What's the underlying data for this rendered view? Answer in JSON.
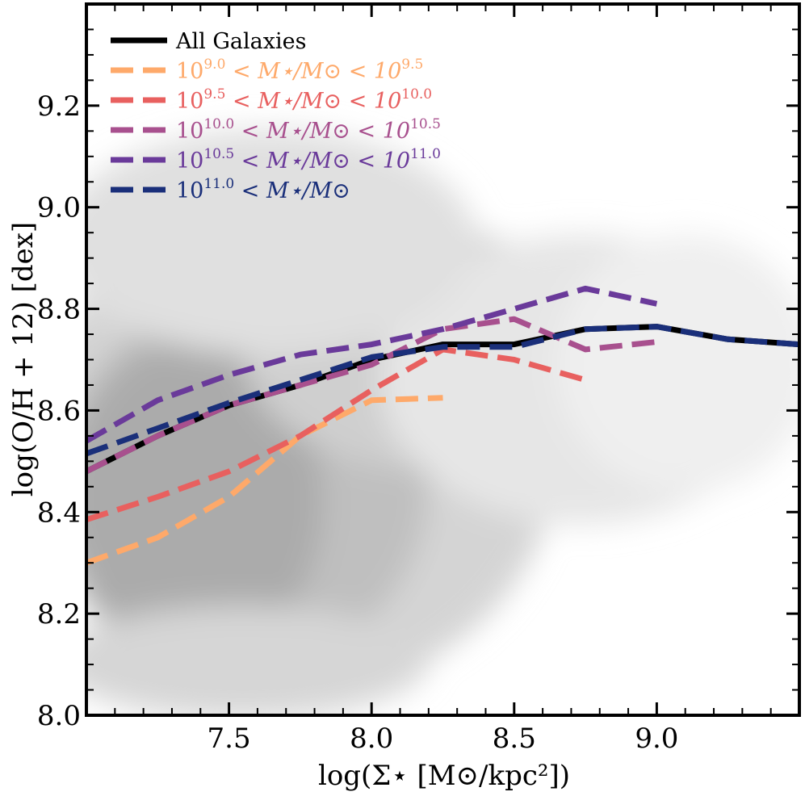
{
  "chart_data": {
    "type": "line",
    "title": "",
    "xlabel": "log(Σ⋆ [M⊙/kpc²])",
    "ylabel": "log(O/H + 12) [dex]",
    "xlim": [
      7.0,
      9.5
    ],
    "ylim": [
      8.0,
      9.4
    ],
    "xticks": [
      7.5,
      8.0,
      8.5,
      9.0
    ],
    "xtick_labels": [
      "7.5",
      "8.0",
      "8.5",
      "9.0"
    ],
    "yticks": [
      8.0,
      8.2,
      8.4,
      8.6,
      8.8,
      9.0,
      9.2
    ],
    "ytick_labels": [
      "8.0",
      "8.2",
      "8.4",
      "8.6",
      "8.8",
      "9.0",
      "9.2"
    ],
    "legend_position": "top-left",
    "background": "2D histogram of all galaxy spaxels (grey density)",
    "series": [
      {
        "name": "All Galaxies",
        "style": "solid",
        "color": "#000000",
        "x": [
          7.0,
          7.25,
          7.5,
          7.75,
          8.0,
          8.25,
          8.5,
          8.75,
          9.0,
          9.25,
          9.5
        ],
        "y": [
          8.48,
          8.55,
          8.61,
          8.65,
          8.7,
          8.73,
          8.73,
          8.76,
          8.765,
          8.74,
          8.73
        ]
      },
      {
        "name": "10^9.0 < M⋆/M⊙ < 10^9.5",
        "label_parts": [
          "10",
          "9.0",
          " < M⋆/M⊙ < 10",
          "9.5"
        ],
        "style": "dashed",
        "color": "#FEA96A",
        "x": [
          7.0,
          7.25,
          7.5,
          7.75,
          8.0,
          8.25
        ],
        "y": [
          8.3,
          8.35,
          8.43,
          8.55,
          8.62,
          8.625
        ]
      },
      {
        "name": "10^9.5 < M⋆/M⊙ < 10^10.0",
        "label_parts": [
          "10",
          "9.5",
          " < M⋆/M⊙ < 10",
          "10.0"
        ],
        "style": "dashed",
        "color": "#E8605F",
        "x": [
          7.0,
          7.25,
          7.5,
          7.75,
          8.0,
          8.25,
          8.5,
          8.75
        ],
        "y": [
          8.385,
          8.43,
          8.48,
          8.55,
          8.64,
          8.72,
          8.7,
          8.66
        ]
      },
      {
        "name": "10^10.0 < M⋆/M⊙ < 10^10.5",
        "label_parts": [
          "10",
          "10.0",
          " < M⋆/M⊙ < 10",
          "10.5"
        ],
        "style": "dashed",
        "color": "#A8508E",
        "x": [
          7.0,
          7.25,
          7.5,
          7.75,
          8.0,
          8.25,
          8.5,
          8.75,
          9.0
        ],
        "y": [
          8.48,
          8.55,
          8.61,
          8.65,
          8.69,
          8.76,
          8.78,
          8.72,
          8.735
        ]
      },
      {
        "name": "10^10.5 < M⋆/M⊙ < 10^11.0",
        "label_parts": [
          "10",
          "10.5",
          " < M⋆/M⊙ < 10",
          "11.0"
        ],
        "style": "dashed",
        "color": "#6A3A9A",
        "x": [
          7.0,
          7.25,
          7.5,
          7.75,
          8.0,
          8.25,
          8.5,
          8.75,
          9.0
        ],
        "y": [
          8.54,
          8.62,
          8.67,
          8.71,
          8.73,
          8.76,
          8.8,
          8.84,
          8.81
        ]
      },
      {
        "name": "10^11.0 < M⋆/M⊙",
        "label_parts": [
          "10",
          "11.0",
          " < M⋆/M⊙",
          ""
        ],
        "style": "dashed",
        "color": "#1A2F7A",
        "x": [
          7.0,
          7.25,
          7.5,
          7.75,
          8.0,
          8.25,
          8.5,
          8.75,
          9.0,
          9.25,
          9.5
        ],
        "y": [
          8.515,
          8.565,
          8.615,
          8.66,
          8.705,
          8.725,
          8.725,
          8.76,
          8.765,
          8.74,
          8.73
        ]
      }
    ]
  }
}
